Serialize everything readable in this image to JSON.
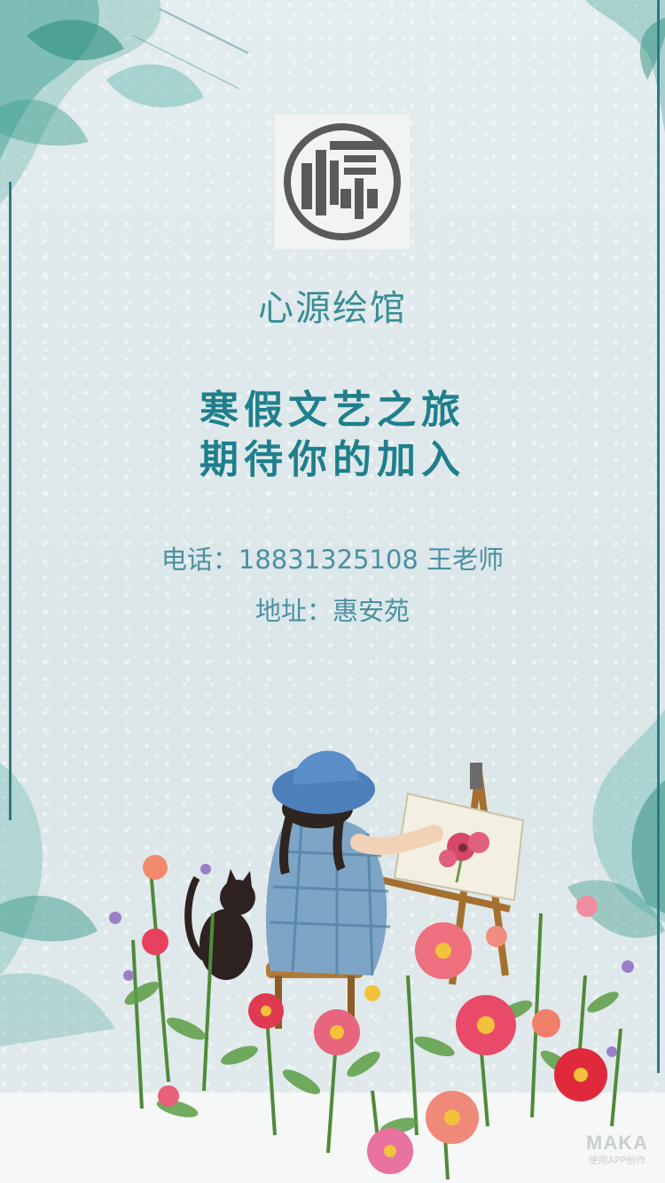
{
  "brand": {
    "logo_glyph": "源",
    "name": "心源绘馆"
  },
  "slogan": {
    "line1": "寒假文艺之旅",
    "line2": "期待你的加入"
  },
  "contact": {
    "phone": "电话：18831325108 王老师",
    "address": "地址：惠安苑"
  },
  "watermark": {
    "title": "MAKA",
    "subtitle": "使用APP创作"
  },
  "colors": {
    "accent": "#1f7f8c",
    "brand_text": "#3a8d97",
    "contact_text": "#4b90a2",
    "logo_gray": "#555555"
  },
  "icons": [
    "seal-logo-icon",
    "girl-painting-illustration",
    "cat-illustration",
    "flower-garden-illustration",
    "watercolor-leaf-decoration"
  ]
}
